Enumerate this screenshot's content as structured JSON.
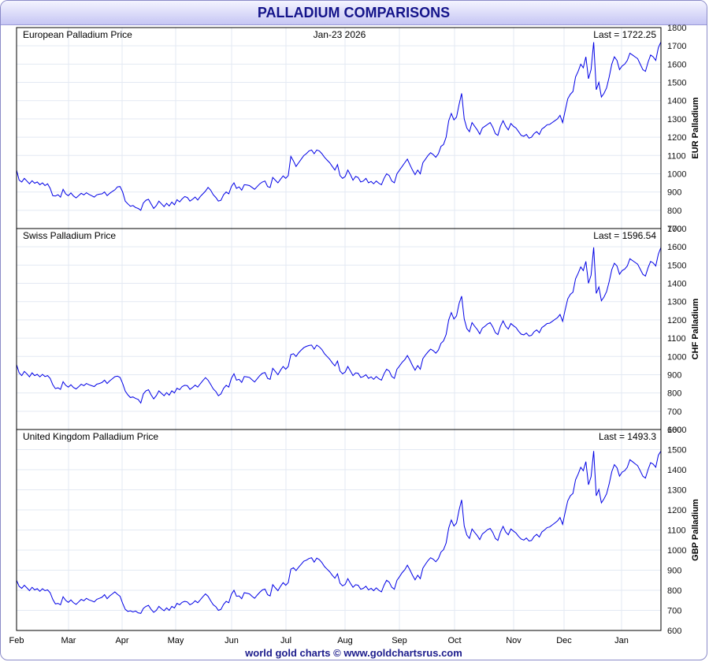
{
  "header": {
    "title": "PALLADIUM COMPARISONS"
  },
  "footer": {
    "text": "world gold charts © www.goldchartsrus.com"
  },
  "chart_data": {
    "type": "line",
    "x_ticks": [
      "Feb",
      "Mar",
      "Apr",
      "May",
      "Jun",
      "Jul",
      "Aug",
      "Sep",
      "Oct",
      "Nov",
      "Dec",
      "Jan"
    ],
    "line_color": "#0000e6",
    "grid": true,
    "panels": [
      {
        "title": "European Palladium Price",
        "date": "Jan-23 2026",
        "last": "Last = 1722.25",
        "ylabel": "EUR Palladium",
        "ylim": [
          700,
          1800
        ],
        "yticks": [
          700,
          800,
          900,
          1000,
          1100,
          1200,
          1300,
          1400,
          1500,
          1600,
          1700,
          1800
        ],
        "values": [
          1020,
          965,
          955,
          975,
          960,
          945,
          962,
          948,
          955,
          940,
          950,
          935,
          945,
          920,
          880,
          878,
          885,
          872,
          915,
          890,
          880,
          895,
          878,
          868,
          880,
          893,
          884,
          896,
          887,
          880,
          872,
          884,
          888,
          890,
          900,
          880,
          893,
          903,
          912,
          928,
          930,
          900,
          850,
          835,
          822,
          826,
          815,
          810,
          800,
          840,
          855,
          860,
          835,
          810,
          825,
          850,
          835,
          820,
          838,
          824,
          845,
          830,
          858,
          846,
          862,
          875,
          870,
          850,
          860,
          872,
          856,
          875,
          890,
          905,
          925,
          910,
          885,
          870,
          850,
          855,
          885,
          900,
          890,
          930,
          950,
          920,
          928,
          910,
          940,
          938,
          935,
          925,
          915,
          930,
          945,
          955,
          960,
          930,
          925,
          980,
          965,
          950,
          970,
          988,
          975,
          990,
          1095,
          1070,
          1040,
          1060,
          1080,
          1100,
          1110,
          1125,
          1130,
          1110,
          1130,
          1125,
          1110,
          1090,
          1075,
          1060,
          1040,
          1020,
          1050,
          990,
          975,
          985,
          1020,
          995,
          965,
          985,
          980,
          955,
          960,
          975,
          950,
          958,
          945,
          960,
          948,
          940,
          975,
          1000,
          990,
          960,
          950,
          1000,
          1020,
          1040,
          1060,
          1080,
          1050,
          1020,
          995,
          1020,
          1000,
          1060,
          1080,
          1100,
          1115,
          1105,
          1090,
          1110,
          1150,
          1160,
          1200,
          1290,
          1330,
          1295,
          1310,
          1380,
          1440,
          1300,
          1250,
          1230,
          1280,
          1260,
          1240,
          1215,
          1250,
          1260,
          1270,
          1280,
          1255,
          1220,
          1210,
          1260,
          1290,
          1260,
          1240,
          1275,
          1260,
          1250,
          1230,
          1210,
          1205,
          1215,
          1195,
          1200,
          1220,
          1230,
          1215,
          1245,
          1255,
          1268,
          1270,
          1280,
          1290,
          1300,
          1320,
          1280,
          1345,
          1410,
          1435,
          1450,
          1530,
          1560,
          1600,
          1580,
          1640,
          1520,
          1570,
          1720,
          1460,
          1500,
          1420,
          1440,
          1470,
          1530,
          1600,
          1640,
          1620,
          1570,
          1590,
          1600,
          1620,
          1660,
          1650,
          1640,
          1630,
          1600,
          1570,
          1560,
          1610,
          1650,
          1640,
          1620,
          1690,
          1722
        ]
      },
      {
        "title": "Swiss Palladium Price",
        "last": "Last = 1596.54",
        "ylabel": "CHF Palladium",
        "ylim": [
          600,
          1700
        ],
        "yticks": [
          600,
          700,
          800,
          900,
          1000,
          1100,
          1200,
          1300,
          1400,
          1500,
          1600,
          1700
        ],
        "values": [
          955,
          910,
          895,
          918,
          905,
          888,
          910,
          895,
          902,
          888,
          902,
          890,
          895,
          880,
          845,
          824,
          828,
          820,
          862,
          842,
          832,
          845,
          830,
          822,
          834,
          848,
          840,
          852,
          845,
          840,
          835,
          848,
          852,
          857,
          870,
          852,
          866,
          878,
          889,
          892,
          885,
          852,
          810,
          790,
          775,
          778,
          770,
          765,
          745,
          795,
          812,
          818,
          790,
          768,
          785,
          812,
          798,
          785,
          802,
          788,
          812,
          800,
          826,
          818,
          835,
          842,
          840,
          820,
          830,
          843,
          832,
          850,
          868,
          884,
          870,
          847,
          822,
          808,
          785,
          795,
          825,
          842,
          832,
          880,
          905,
          870,
          875,
          858,
          890,
          888,
          885,
          872,
          860,
          878,
          895,
          908,
          912,
          880,
          875,
          935,
          918,
          900,
          925,
          945,
          930,
          945,
          1010,
          1015,
          1000,
          1020,
          1035,
          1048,
          1055,
          1060,
          1062,
          1040,
          1062,
          1052,
          1038,
          1015,
          1000,
          985,
          965,
          948,
          975,
          920,
          905,
          915,
          945,
          920,
          895,
          910,
          908,
          885,
          890,
          900,
          880,
          888,
          875,
          890,
          878,
          870,
          905,
          930,
          920,
          890,
          880,
          930,
          948,
          968,
          982,
          1005,
          980,
          950,
          925,
          950,
          930,
          988,
          1008,
          1025,
          1040,
          1032,
          1018,
          1035,
          1072,
          1085,
          1120,
          1200,
          1240,
          1205,
          1222,
          1290,
          1330,
          1205,
          1152,
          1135,
          1185,
          1165,
          1148,
          1125,
          1155,
          1165,
          1178,
          1185,
          1162,
          1130,
          1120,
          1165,
          1195,
          1165,
          1150,
          1180,
          1168,
          1158,
          1138,
          1122,
          1118,
          1128,
          1112,
          1115,
          1135,
          1145,
          1130,
          1158,
          1168,
          1180,
          1182,
          1192,
          1202,
          1212,
          1230,
          1192,
          1255,
          1315,
          1340,
          1352,
          1425,
          1455,
          1490,
          1470,
          1520,
          1400,
          1445,
          1597,
          1345,
          1380,
          1305,
          1325,
          1355,
          1410,
          1475,
          1510,
          1495,
          1450,
          1470,
          1478,
          1495,
          1535,
          1525,
          1515,
          1505,
          1478,
          1450,
          1440,
          1485,
          1520,
          1512,
          1495,
          1560,
          1597
        ]
      },
      {
        "title": "United Kingdom Palladium Price",
        "last": "Last = 1493.3",
        "ylabel": "GBP Palladium",
        "ylim": [
          600,
          1600
        ],
        "yticks": [
          600,
          700,
          800,
          900,
          1000,
          1100,
          1200,
          1300,
          1400,
          1500,
          1600
        ],
        "values": [
          850,
          820,
          810,
          825,
          812,
          798,
          815,
          802,
          808,
          795,
          808,
          798,
          802,
          788,
          755,
          732,
          735,
          728,
          768,
          750,
          740,
          752,
          738,
          730,
          742,
          755,
          748,
          760,
          752,
          748,
          742,
          755,
          760,
          765,
          778,
          758,
          772,
          782,
          792,
          780,
          770,
          735,
          705,
          695,
          698,
          692,
          697,
          688,
          685,
          710,
          720,
          725,
          705,
          690,
          700,
          720,
          708,
          698,
          712,
          700,
          720,
          712,
          735,
          728,
          740,
          745,
          742,
          728,
          735,
          748,
          738,
          752,
          768,
          782,
          770,
          748,
          728,
          718,
          700,
          705,
          730,
          745,
          738,
          780,
          800,
          770,
          772,
          758,
          788,
          785,
          782,
          770,
          760,
          776,
          790,
          802,
          806,
          778,
          772,
          828,
          812,
          798,
          820,
          838,
          825,
          838,
          905,
          912,
          898,
          915,
          930,
          945,
          950,
          958,
          962,
          940,
          960,
          952,
          938,
          918,
          905,
          892,
          875,
          860,
          882,
          835,
          822,
          830,
          858,
          835,
          815,
          828,
          825,
          805,
          810,
          820,
          802,
          810,
          798,
          812,
          800,
          792,
          825,
          850,
          840,
          815,
          805,
          850,
          868,
          888,
          902,
          925,
          902,
          875,
          852,
          875,
          858,
          910,
          930,
          948,
          962,
          955,
          942,
          958,
          990,
          1002,
          1035,
          1110,
          1150,
          1120,
          1135,
          1200,
          1250,
          1120,
          1075,
          1058,
          1105,
          1088,
          1072,
          1052,
          1080,
          1090,
          1102,
          1108,
          1088,
          1058,
          1048,
          1090,
          1118,
          1090,
          1076,
          1105,
          1095,
          1085,
          1068,
          1055,
          1050,
          1060,
          1045,
          1048,
          1068,
          1078,
          1065,
          1090,
          1100,
          1112,
          1115,
          1125,
          1135,
          1145,
          1162,
          1128,
          1188,
          1245,
          1270,
          1282,
          1350,
          1378,
          1412,
          1395,
          1440,
          1325,
          1365,
          1493,
          1270,
          1302,
          1235,
          1255,
          1280,
          1330,
          1390,
          1425,
          1410,
          1368,
          1388,
          1395,
          1412,
          1450,
          1440,
          1430,
          1420,
          1395,
          1368,
          1358,
          1400,
          1435,
          1428,
          1412,
          1472,
          1493
        ]
      }
    ]
  }
}
